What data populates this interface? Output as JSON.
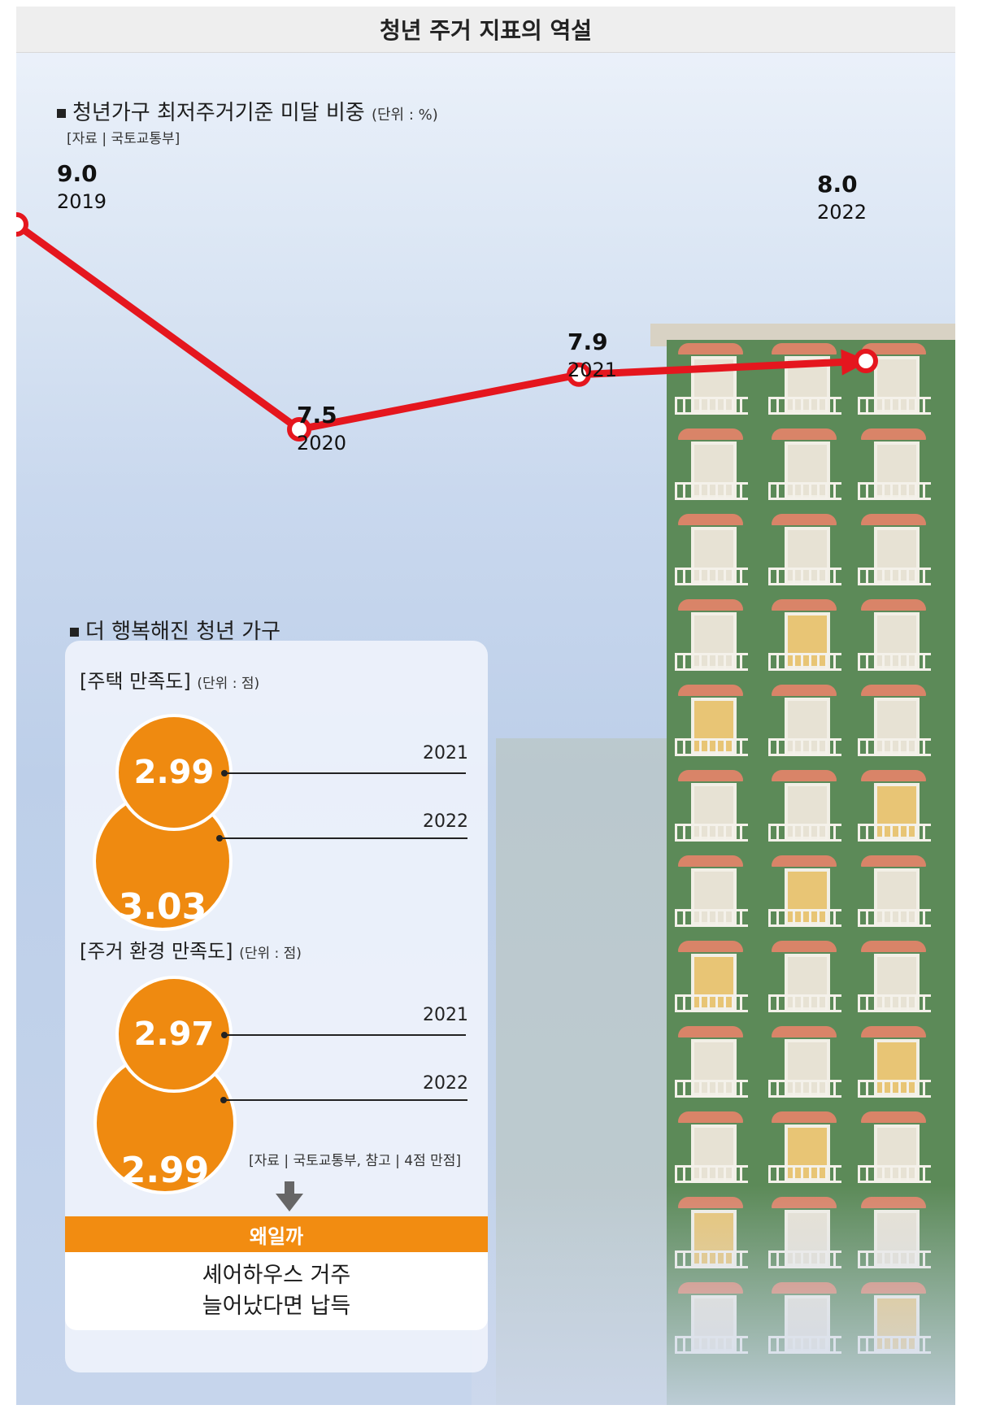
{
  "header": {
    "title": "청년 주거 지표의 역설"
  },
  "section1": {
    "title": "청년가구 최저주거기준 미달 비중",
    "unit": "(단위 : %)",
    "source": "[자료 | 국토교통부]"
  },
  "chart_data": [
    {
      "type": "line",
      "title": "청년가구 최저주거기준 미달 비중",
      "unit": "%",
      "x": [
        "2019",
        "2020",
        "2021",
        "2022"
      ],
      "values": [
        9.0,
        7.5,
        7.9,
        8.0
      ],
      "value_labels": [
        "9.0",
        "7.5",
        "7.9",
        "8.0"
      ],
      "line_color": "#e5161e"
    },
    {
      "type": "bubble",
      "title": "주택 만족도",
      "unit": "점",
      "x": [
        "2021",
        "2022"
      ],
      "values": [
        2.99,
        3.03
      ],
      "value_labels": [
        "2.99",
        "3.03"
      ],
      "color": "#ef8a10"
    },
    {
      "type": "bubble",
      "title": "주거 환경 만족도",
      "unit": "점",
      "x": [
        "2021",
        "2022"
      ],
      "values": [
        2.97,
        2.99
      ],
      "value_labels": [
        "2.97",
        "2.99"
      ],
      "color": "#ef8a10"
    }
  ],
  "section2": {
    "title": "더 행복해진 청년 가구",
    "housing": {
      "label": "[주택 만족도]",
      "unit": "(단위 : 점)"
    },
    "environment": {
      "label": "[주거 환경 만족도]",
      "unit": "(단위 : 점)"
    },
    "source": "[자료 | 국토교통부, 참고 | 4점 만점]"
  },
  "why": {
    "title": "왜일까",
    "line1": "셰어하우스 거주",
    "line2": "늘어났다면 납득"
  }
}
